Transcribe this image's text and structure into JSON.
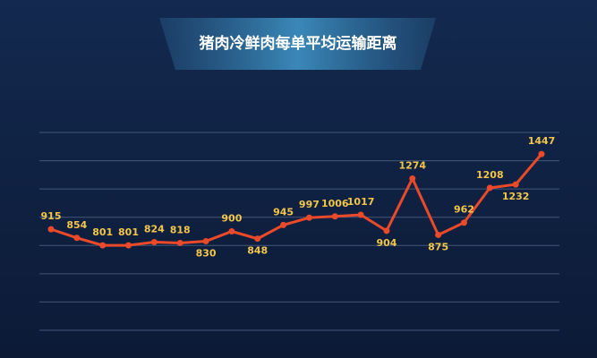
{
  "chart_data": {
    "type": "line",
    "title": "猪肉冷鲜肉每单平均运输距离",
    "categories": [
      null,
      null,
      null,
      null,
      null,
      null,
      null,
      null,
      null,
      null,
      null,
      null,
      null,
      null,
      null,
      null,
      null,
      null,
      null,
      null
    ],
    "series": [
      {
        "color": "#ea4a2a",
        "values": [
          915,
          854,
          801,
          801,
          824,
          818,
          830,
          900,
          848,
          945,
          997,
          1006,
          1017,
          904,
          1274,
          875,
          962,
          1208,
          1232,
          1447
        ]
      }
    ],
    "ylim": [
      200,
      1600
    ],
    "yticks": [
      200,
      400,
      600,
      800,
      1000,
      1200,
      1400,
      1600
    ],
    "grid": true
  }
}
